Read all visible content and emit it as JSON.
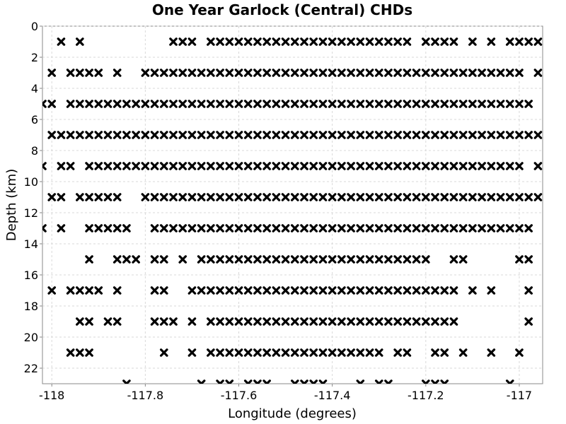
{
  "chart_data": {
    "type": "scatter",
    "title": "One Year Garlock (Central) CHDs",
    "xlabel": "Longitude (degrees)",
    "ylabel": "Depth (km)",
    "xlim": [
      -118.02,
      -116.95
    ],
    "ylim": [
      0,
      23
    ],
    "y_inverted": true,
    "x_ticks": [
      -118,
      -117.8,
      -117.6,
      -117.4,
      -117.2,
      -117
    ],
    "x_tick_labels": [
      "-118",
      "-117.8",
      "-117.6",
      "-117.4",
      "-117.2",
      "-117"
    ],
    "y_ticks": [
      0,
      2,
      4,
      6,
      8,
      10,
      12,
      14,
      16,
      18,
      20,
      22
    ],
    "y_tick_labels": [
      "0",
      "2",
      "4",
      "6",
      "8",
      "10",
      "12",
      "14",
      "16",
      "18",
      "20",
      "22"
    ],
    "grid": true,
    "marker": "x",
    "marker_color": "#000000",
    "x_step": 0.02,
    "rows": [
      {
        "depth": 1,
        "ranges": [
          [
            -117.98,
            -117.98
          ],
          [
            -117.94,
            -117.94
          ],
          [
            -117.74,
            -117.7
          ],
          [
            -117.66,
            -117.32
          ],
          [
            -117.3,
            -117.24
          ],
          [
            -117.2,
            -117.14
          ],
          [
            -117.1,
            -117.1
          ],
          [
            -117.06,
            -117.06
          ],
          [
            -117.02,
            -116.96
          ]
        ]
      },
      {
        "depth": 3,
        "ranges": [
          [
            -118.0,
            -118.0
          ],
          [
            -117.96,
            -117.9
          ],
          [
            -117.86,
            -117.86
          ],
          [
            -117.8,
            -117.0
          ],
          [
            -116.96,
            -116.96
          ],
          [
            -116.92,
            -116.92
          ]
        ]
      },
      {
        "depth": 5,
        "ranges": [
          [
            -118.02,
            -118.0
          ],
          [
            -117.96,
            -116.98
          ],
          [
            -116.94,
            -116.94
          ]
        ]
      },
      {
        "depth": 7,
        "ranges": [
          [
            -118.0,
            -116.9
          ]
        ]
      },
      {
        "depth": 9,
        "ranges": [
          [
            -118.02,
            -118.02
          ],
          [
            -117.98,
            -117.96
          ],
          [
            -117.92,
            -117.0
          ],
          [
            -116.96,
            -116.94
          ]
        ]
      },
      {
        "depth": 11,
        "ranges": [
          [
            -118.0,
            -117.98
          ],
          [
            -117.94,
            -117.86
          ],
          [
            -117.8,
            -116.96
          ],
          [
            -116.9,
            -116.9
          ]
        ]
      },
      {
        "depth": 13,
        "ranges": [
          [
            -118.02,
            -118.02
          ],
          [
            -117.98,
            -117.98
          ],
          [
            -117.92,
            -117.84
          ],
          [
            -117.78,
            -116.98
          ],
          [
            -116.92,
            -116.92
          ]
        ]
      },
      {
        "depth": 15,
        "ranges": [
          [
            -117.92,
            -117.92
          ],
          [
            -117.86,
            -117.82
          ],
          [
            -117.78,
            -117.76
          ],
          [
            -117.72,
            -117.72
          ],
          [
            -117.68,
            -117.2
          ],
          [
            -117.14,
            -117.12
          ],
          [
            -117.0,
            -116.98
          ]
        ]
      },
      {
        "depth": 17,
        "ranges": [
          [
            -118.0,
            -118.0
          ],
          [
            -117.96,
            -117.9
          ],
          [
            -117.86,
            -117.86
          ],
          [
            -117.78,
            -117.76
          ],
          [
            -117.7,
            -117.14
          ],
          [
            -117.1,
            -117.1
          ],
          [
            -117.06,
            -117.06
          ],
          [
            -116.98,
            -116.98
          ]
        ]
      },
      {
        "depth": 19,
        "ranges": [
          [
            -117.94,
            -117.92
          ],
          [
            -117.88,
            -117.86
          ],
          [
            -117.78,
            -117.74
          ],
          [
            -117.7,
            -117.7
          ],
          [
            -117.66,
            -117.14
          ],
          [
            -116.98,
            -116.98
          ],
          [
            -116.9,
            -116.9
          ]
        ]
      },
      {
        "depth": 21,
        "ranges": [
          [
            -117.96,
            -117.92
          ],
          [
            -117.76,
            -117.76
          ],
          [
            -117.7,
            -117.7
          ],
          [
            -117.66,
            -117.3
          ],
          [
            -117.26,
            -117.24
          ],
          [
            -117.18,
            -117.16
          ],
          [
            -117.12,
            -117.12
          ],
          [
            -117.06,
            -117.06
          ],
          [
            -117.0,
            -117.0
          ]
        ]
      },
      {
        "depth": 23,
        "ranges": [
          [
            -117.84,
            -117.84
          ],
          [
            -117.68,
            -117.68
          ],
          [
            -117.64,
            -117.62
          ],
          [
            -117.58,
            -117.54
          ],
          [
            -117.48,
            -117.42
          ],
          [
            -117.34,
            -117.34
          ],
          [
            -117.3,
            -117.28
          ],
          [
            -117.2,
            -117.18
          ],
          [
            -117.16,
            -117.16
          ],
          [
            -117.02,
            -117.02
          ]
        ]
      }
    ]
  }
}
